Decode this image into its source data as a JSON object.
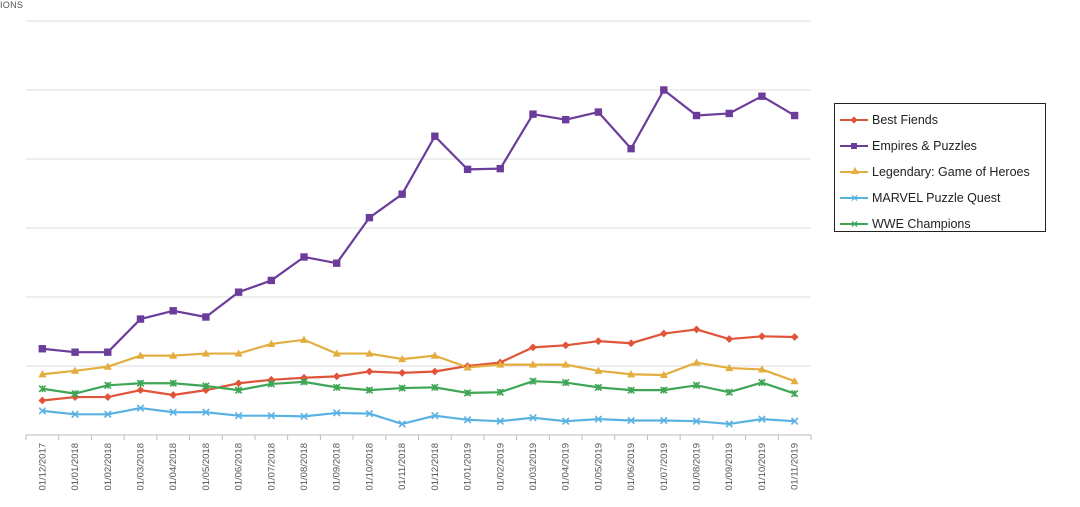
{
  "colors": {
    "best_fiends": "#e0553a",
    "empires_puzzles": "#6b3d9a",
    "legendary": "#e3ae3f",
    "marvel": "#5ab2e3",
    "wwe": "#3fa656",
    "grid": "#dddddd"
  },
  "chart_data": {
    "type": "line",
    "title": "",
    "ylabel": "IONS",
    "xlabel": "",
    "ylim": [
      0,
      6
    ],
    "grid": true,
    "legend_position": "right",
    "categories": [
      "01/12/2017",
      "01/01/2018",
      "01/02/2018",
      "01/03/2018",
      "01/04/2018",
      "01/05/2018",
      "01/06/2018",
      "01/07/2018",
      "01/08/2018",
      "01/09/2018",
      "01/10/2018",
      "01/11/2018",
      "01/12/2018",
      "01/01/2019",
      "01/02/2019",
      "01/03/2019",
      "01/04/2019",
      "01/05/2019",
      "01/06/2019",
      "01/07/2019",
      "01/08/2019",
      "01/09/2019",
      "01/10/2019",
      "01/11/2019"
    ],
    "series": [
      {
        "name": "Best Fiends",
        "marker": "diamond",
        "color_key": "best_fiends",
        "values": [
          0.5,
          0.55,
          0.55,
          0.65,
          0.58,
          0.65,
          0.75,
          0.8,
          0.83,
          0.85,
          0.92,
          0.9,
          0.92,
          1.0,
          1.05,
          1.27,
          1.3,
          1.36,
          1.33,
          1.47,
          1.53,
          1.39,
          1.43,
          1.42
        ]
      },
      {
        "name": "Empires & Puzzles",
        "marker": "square",
        "color_key": "empires_puzzles",
        "values": [
          1.25,
          1.2,
          1.2,
          1.68,
          1.8,
          1.71,
          2.07,
          2.24,
          2.58,
          2.49,
          3.15,
          3.49,
          4.33,
          3.85,
          3.86,
          4.65,
          4.57,
          4.68,
          4.15,
          5.0,
          4.63,
          4.66,
          4.91,
          4.63
        ]
      },
      {
        "name": "Legendary: Game of Heroes",
        "marker": "triangle",
        "color_key": "legendary",
        "values": [
          0.88,
          0.93,
          0.99,
          1.15,
          1.15,
          1.18,
          1.18,
          1.32,
          1.38,
          1.18,
          1.18,
          1.1,
          1.15,
          0.98,
          1.02,
          1.02,
          1.02,
          0.93,
          0.88,
          0.87,
          1.05,
          0.97,
          0.95,
          0.78
        ]
      },
      {
        "name": "MARVEL Puzzle Quest",
        "marker": "x",
        "color_key": "marvel",
        "values": [
          0.35,
          0.3,
          0.3,
          0.39,
          0.33,
          0.33,
          0.28,
          0.28,
          0.27,
          0.32,
          0.31,
          0.16,
          0.28,
          0.22,
          0.2,
          0.25,
          0.2,
          0.23,
          0.21,
          0.21,
          0.2,
          0.16,
          0.23,
          0.2
        ]
      },
      {
        "name": "WWE Champions",
        "marker": "star",
        "color_key": "wwe",
        "values": [
          0.67,
          0.6,
          0.72,
          0.75,
          0.75,
          0.71,
          0.65,
          0.74,
          0.77,
          0.69,
          0.65,
          0.68,
          0.69,
          0.61,
          0.62,
          0.78,
          0.76,
          0.69,
          0.65,
          0.65,
          0.72,
          0.62,
          0.76,
          0.6
        ]
      }
    ]
  }
}
